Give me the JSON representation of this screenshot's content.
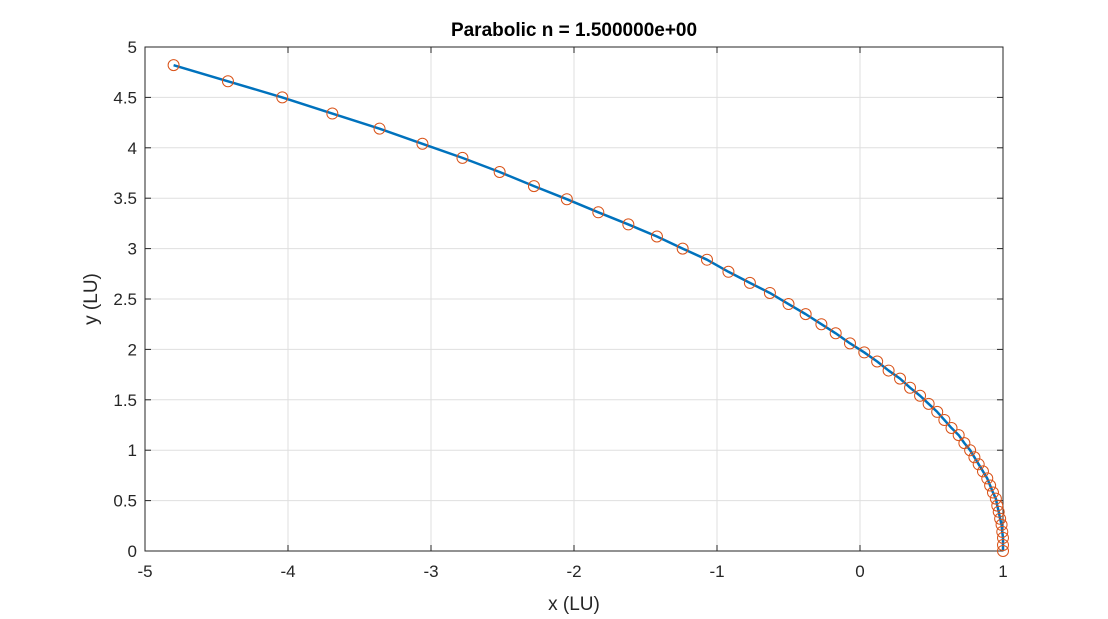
{
  "chart_data": {
    "type": "line",
    "title": "Parabolic n = 1.500000e+00",
    "xlabel": "x (LU)",
    "ylabel": "y (LU)",
    "xlim": [
      -5,
      1
    ],
    "ylim": [
      0,
      5
    ],
    "xticks": [
      "-5",
      "-4",
      "-3",
      "-2",
      "-1",
      "0",
      "1"
    ],
    "yticks": [
      "0",
      "0.5",
      "1",
      "1.5",
      "2",
      "2.5",
      "3",
      "3.5",
      "4",
      "4.5",
      "5"
    ],
    "grid": true,
    "series": [
      {
        "style": "line",
        "color": "#0072BD",
        "x": [
          -4.8,
          -4.42,
          -4.04,
          -3.69,
          -3.36,
          -3.06,
          -2.78,
          -2.52,
          -2.28,
          -2.05,
          -1.83,
          -1.62,
          -1.42,
          -1.24,
          -1.07,
          -0.92,
          -0.77,
          -0.63,
          -0.5,
          -0.38,
          -0.27,
          -0.17,
          -0.07,
          0.03,
          0.12,
          0.2,
          0.28,
          0.35,
          0.42,
          0.48,
          0.54,
          0.59,
          0.64,
          0.69,
          0.73,
          0.77,
          0.8,
          0.83,
          0.86,
          0.89,
          0.91,
          0.93,
          0.95,
          0.96,
          0.97,
          0.98,
          0.99,
          0.995,
          1.0,
          1.0,
          1.0
        ],
        "y": [
          4.82,
          4.66,
          4.5,
          4.34,
          4.19,
          4.04,
          3.9,
          3.76,
          3.62,
          3.49,
          3.36,
          3.24,
          3.12,
          3.0,
          2.89,
          2.77,
          2.66,
          2.56,
          2.45,
          2.35,
          2.25,
          2.16,
          2.06,
          1.97,
          1.88,
          1.79,
          1.71,
          1.62,
          1.54,
          1.46,
          1.38,
          1.3,
          1.22,
          1.15,
          1.07,
          1.0,
          0.93,
          0.86,
          0.79,
          0.72,
          0.65,
          0.58,
          0.52,
          0.45,
          0.39,
          0.32,
          0.26,
          0.19,
          0.13,
          0.06,
          0.0
        ]
      },
      {
        "style": "marker-circle",
        "color": "#D95319",
        "x": [
          -4.8,
          -4.42,
          -4.04,
          -3.69,
          -3.36,
          -3.06,
          -2.78,
          -2.52,
          -2.28,
          -2.05,
          -1.83,
          -1.62,
          -1.42,
          -1.24,
          -1.07,
          -0.92,
          -0.77,
          -0.63,
          -0.5,
          -0.38,
          -0.27,
          -0.17,
          -0.07,
          0.03,
          0.12,
          0.2,
          0.28,
          0.35,
          0.42,
          0.48,
          0.54,
          0.59,
          0.64,
          0.69,
          0.73,
          0.77,
          0.8,
          0.83,
          0.86,
          0.89,
          0.91,
          0.93,
          0.95,
          0.96,
          0.97,
          0.98,
          0.99,
          0.995,
          1.0,
          1.0,
          1.0
        ],
        "y": [
          4.82,
          4.66,
          4.5,
          4.34,
          4.19,
          4.04,
          3.9,
          3.76,
          3.62,
          3.49,
          3.36,
          3.24,
          3.12,
          3.0,
          2.89,
          2.77,
          2.66,
          2.56,
          2.45,
          2.35,
          2.25,
          2.16,
          2.06,
          1.97,
          1.88,
          1.79,
          1.71,
          1.62,
          1.54,
          1.46,
          1.38,
          1.3,
          1.22,
          1.15,
          1.07,
          1.0,
          0.93,
          0.86,
          0.79,
          0.72,
          0.65,
          0.58,
          0.52,
          0.45,
          0.39,
          0.32,
          0.26,
          0.19,
          0.13,
          0.06,
          0.0
        ]
      }
    ]
  }
}
